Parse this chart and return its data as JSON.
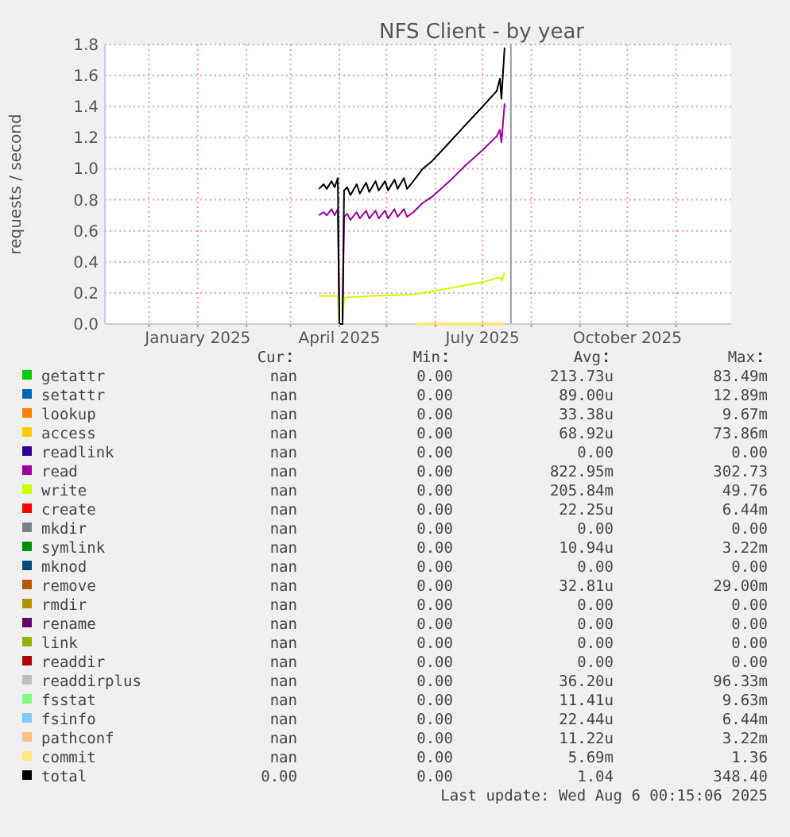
{
  "chart_data": [
    {
      "type": "line",
      "title": "NFS Client - by year",
      "ylabel": "requests / second",
      "xlim": [
        "2024-11-03",
        "2025-12-06"
      ],
      "xticks": [
        {
          "value": "2024-12-01",
          "label": null
        },
        {
          "value": "2025-01-01",
          "label": "January 2025"
        },
        {
          "value": "2025-02-01",
          "label": null
        },
        {
          "value": "2025-03-01",
          "label": null
        },
        {
          "value": "2025-04-01",
          "label": "April 2025"
        },
        {
          "value": "2025-05-01",
          "label": null
        },
        {
          "value": "2025-06-01",
          "label": null
        },
        {
          "value": "2025-07-01",
          "label": "July 2025"
        },
        {
          "value": "2025-08-01",
          "label": null
        },
        {
          "value": "2025-09-01",
          "label": null
        },
        {
          "value": "2025-10-01",
          "label": "October 2025"
        },
        {
          "value": "2025-11-01",
          "label": null
        }
      ],
      "ylim": [
        0,
        1.8
      ],
      "yticks": [
        {
          "value": 0,
          "label": "0.0"
        },
        0.2,
        0.4,
        0.6,
        0.8,
        {
          "value": 1,
          "label": "1.0"
        },
        1.2,
        1.4,
        1.6,
        1.8
      ],
      "grid": true,
      "legend": "bottom",
      "line_style": "solid",
      "ref_lines": [
        {
          "axis": "x",
          "value": "2025-07-19",
          "label": null,
          "color": "#999999"
        }
      ],
      "series": [
        {
          "name": "getattr",
          "color": "#00cc00"
        },
        {
          "name": "setattr",
          "color": "#0066b3"
        },
        {
          "name": "lookup",
          "color": "#ff8000"
        },
        {
          "name": "access",
          "color": "#ffcc00"
        },
        {
          "name": "readlink",
          "color": "#330099"
        },
        {
          "name": "read",
          "color": "#990099",
          "x": [
            "2025-03-19",
            "2025-03-22",
            "2025-03-24",
            "2025-03-27",
            "2025-03-29",
            "2025-03-31",
            "2025-04-01",
            "2025-04-03",
            "2025-04-04",
            "2025-04-06",
            "2025-04-08",
            "2025-04-12",
            "2025-04-14",
            "2025-04-18",
            "2025-04-20",
            "2025-04-24",
            "2025-04-26",
            "2025-04-30",
            "2025-05-02",
            "2025-05-06",
            "2025-05-08",
            "2025-05-12",
            "2025-05-14",
            "2025-05-18",
            "2025-05-24",
            "2025-05-30",
            "2025-06-10",
            "2025-06-20",
            "2025-07-01",
            "2025-07-10",
            "2025-07-12",
            "2025-07-13",
            "2025-07-15"
          ],
          "values": [
            0.7,
            0.72,
            0.7,
            0.74,
            0.7,
            0.74,
            0,
            0,
            0.69,
            0.71,
            0.67,
            0.72,
            0.68,
            0.73,
            0.68,
            0.73,
            0.68,
            0.73,
            0.68,
            0.74,
            0.69,
            0.74,
            0.69,
            0.72,
            0.78,
            0.82,
            0.92,
            1.02,
            1.12,
            1.21,
            1.25,
            1.17,
            1.42
          ]
        },
        {
          "name": "write",
          "color": "#ccff00",
          "x": [
            "2025-03-19",
            "2025-03-31",
            "2025-04-01",
            "2025-04-03",
            "2025-04-04",
            "2025-04-20",
            "2025-05-18",
            "2025-06-10",
            "2025-07-01",
            "2025-07-12",
            "2025-07-13",
            "2025-07-15"
          ],
          "values": [
            0.18,
            0.18,
            0,
            0,
            0.17,
            0.18,
            0.19,
            0.23,
            0.27,
            0.3,
            0.28,
            0.33
          ]
        },
        {
          "name": "create",
          "color": "#ff0000"
        },
        {
          "name": "mkdir",
          "color": "#808080"
        },
        {
          "name": "symlink",
          "color": "#008f00"
        },
        {
          "name": "mknod",
          "color": "#00487d"
        },
        {
          "name": "remove",
          "color": "#b35a00"
        },
        {
          "name": "rmdir",
          "color": "#b38f00"
        },
        {
          "name": "rename",
          "color": "#6b006b"
        },
        {
          "name": "link",
          "color": "#8fb300"
        },
        {
          "name": "readdir",
          "color": "#b30000"
        },
        {
          "name": "readdirplus",
          "color": "#bebebe"
        },
        {
          "name": "fsstat",
          "color": "#80ff80"
        },
        {
          "name": "fsinfo",
          "color": "#80c9ff"
        },
        {
          "name": "pathconf",
          "color": "#ffc080"
        },
        {
          "name": "commit",
          "color": "#ffe680",
          "x": [
            "2025-05-20",
            "2025-07-15"
          ],
          "values": [
            0,
            0
          ]
        },
        {
          "name": "total",
          "color": "#000000",
          "x": [
            "2025-03-19",
            "2025-03-22",
            "2025-03-24",
            "2025-03-27",
            "2025-03-29",
            "2025-03-31",
            "2025-04-01",
            "2025-04-03",
            "2025-04-04",
            "2025-04-06",
            "2025-04-08",
            "2025-04-12",
            "2025-04-14",
            "2025-04-18",
            "2025-04-20",
            "2025-04-24",
            "2025-04-26",
            "2025-04-30",
            "2025-05-02",
            "2025-05-06",
            "2025-05-08",
            "2025-05-12",
            "2025-05-14",
            "2025-05-18",
            "2025-05-24",
            "2025-05-30",
            "2025-06-10",
            "2025-06-20",
            "2025-07-01",
            "2025-07-10",
            "2025-07-12",
            "2025-07-13",
            "2025-07-15"
          ],
          "values": [
            0.87,
            0.9,
            0.87,
            0.92,
            0.88,
            0.94,
            0,
            0,
            0.86,
            0.88,
            0.83,
            0.9,
            0.84,
            0.91,
            0.85,
            0.92,
            0.86,
            0.92,
            0.86,
            0.93,
            0.87,
            0.94,
            0.87,
            0.92,
            1.0,
            1.05,
            1.17,
            1.28,
            1.4,
            1.5,
            1.58,
            1.45,
            1.78
          ]
        }
      ]
    },
    {
      "type": "other",
      "categories": [
        "Cur",
        "Min",
        "Avg",
        "Max"
      ],
      "cell_labels": [
        [
          "nan",
          "0.00",
          "213.73u",
          "83.49m"
        ],
        [
          "nan",
          "0.00",
          "89.00u",
          "12.89m"
        ],
        [
          "nan",
          "0.00",
          "33.38u",
          "9.67m"
        ],
        [
          "nan",
          "0.00",
          "68.92u",
          "73.86m"
        ],
        [
          "nan",
          "0.00",
          "0.00",
          "0.00"
        ],
        [
          "nan",
          "0.00",
          "822.95m",
          "302.73"
        ],
        [
          "nan",
          "0.00",
          "205.84m",
          "49.76"
        ],
        [
          "nan",
          "0.00",
          "22.25u",
          "6.44m"
        ],
        [
          "nan",
          "0.00",
          "0.00",
          "0.00"
        ],
        [
          "nan",
          "0.00",
          "10.94u",
          "3.22m"
        ],
        [
          "nan",
          "0.00",
          "0.00",
          "0.00"
        ],
        [
          "nan",
          "0.00",
          "32.81u",
          "29.00m"
        ],
        [
          "nan",
          "0.00",
          "0.00",
          "0.00"
        ],
        [
          "nan",
          "0.00",
          "0.00",
          "0.00"
        ],
        [
          "nan",
          "0.00",
          "0.00",
          "0.00"
        ],
        [
          "nan",
          "0.00",
          "0.00",
          "0.00"
        ],
        [
          "nan",
          "0.00",
          "36.20u",
          "96.33m"
        ],
        [
          "nan",
          "0.00",
          "11.41u",
          "9.63m"
        ],
        [
          "nan",
          "0.00",
          "22.44u",
          "6.44m"
        ],
        [
          "nan",
          "0.00",
          "11.22u",
          "3.22m"
        ],
        [
          "nan",
          "0.00",
          "5.69m",
          "1.36"
        ],
        [
          "0.00",
          "0.00",
          "1.04",
          "348.40"
        ]
      ],
      "annotations": [
        "Last update: Wed Aug  6 00:15:06 2025"
      ]
    }
  ]
}
